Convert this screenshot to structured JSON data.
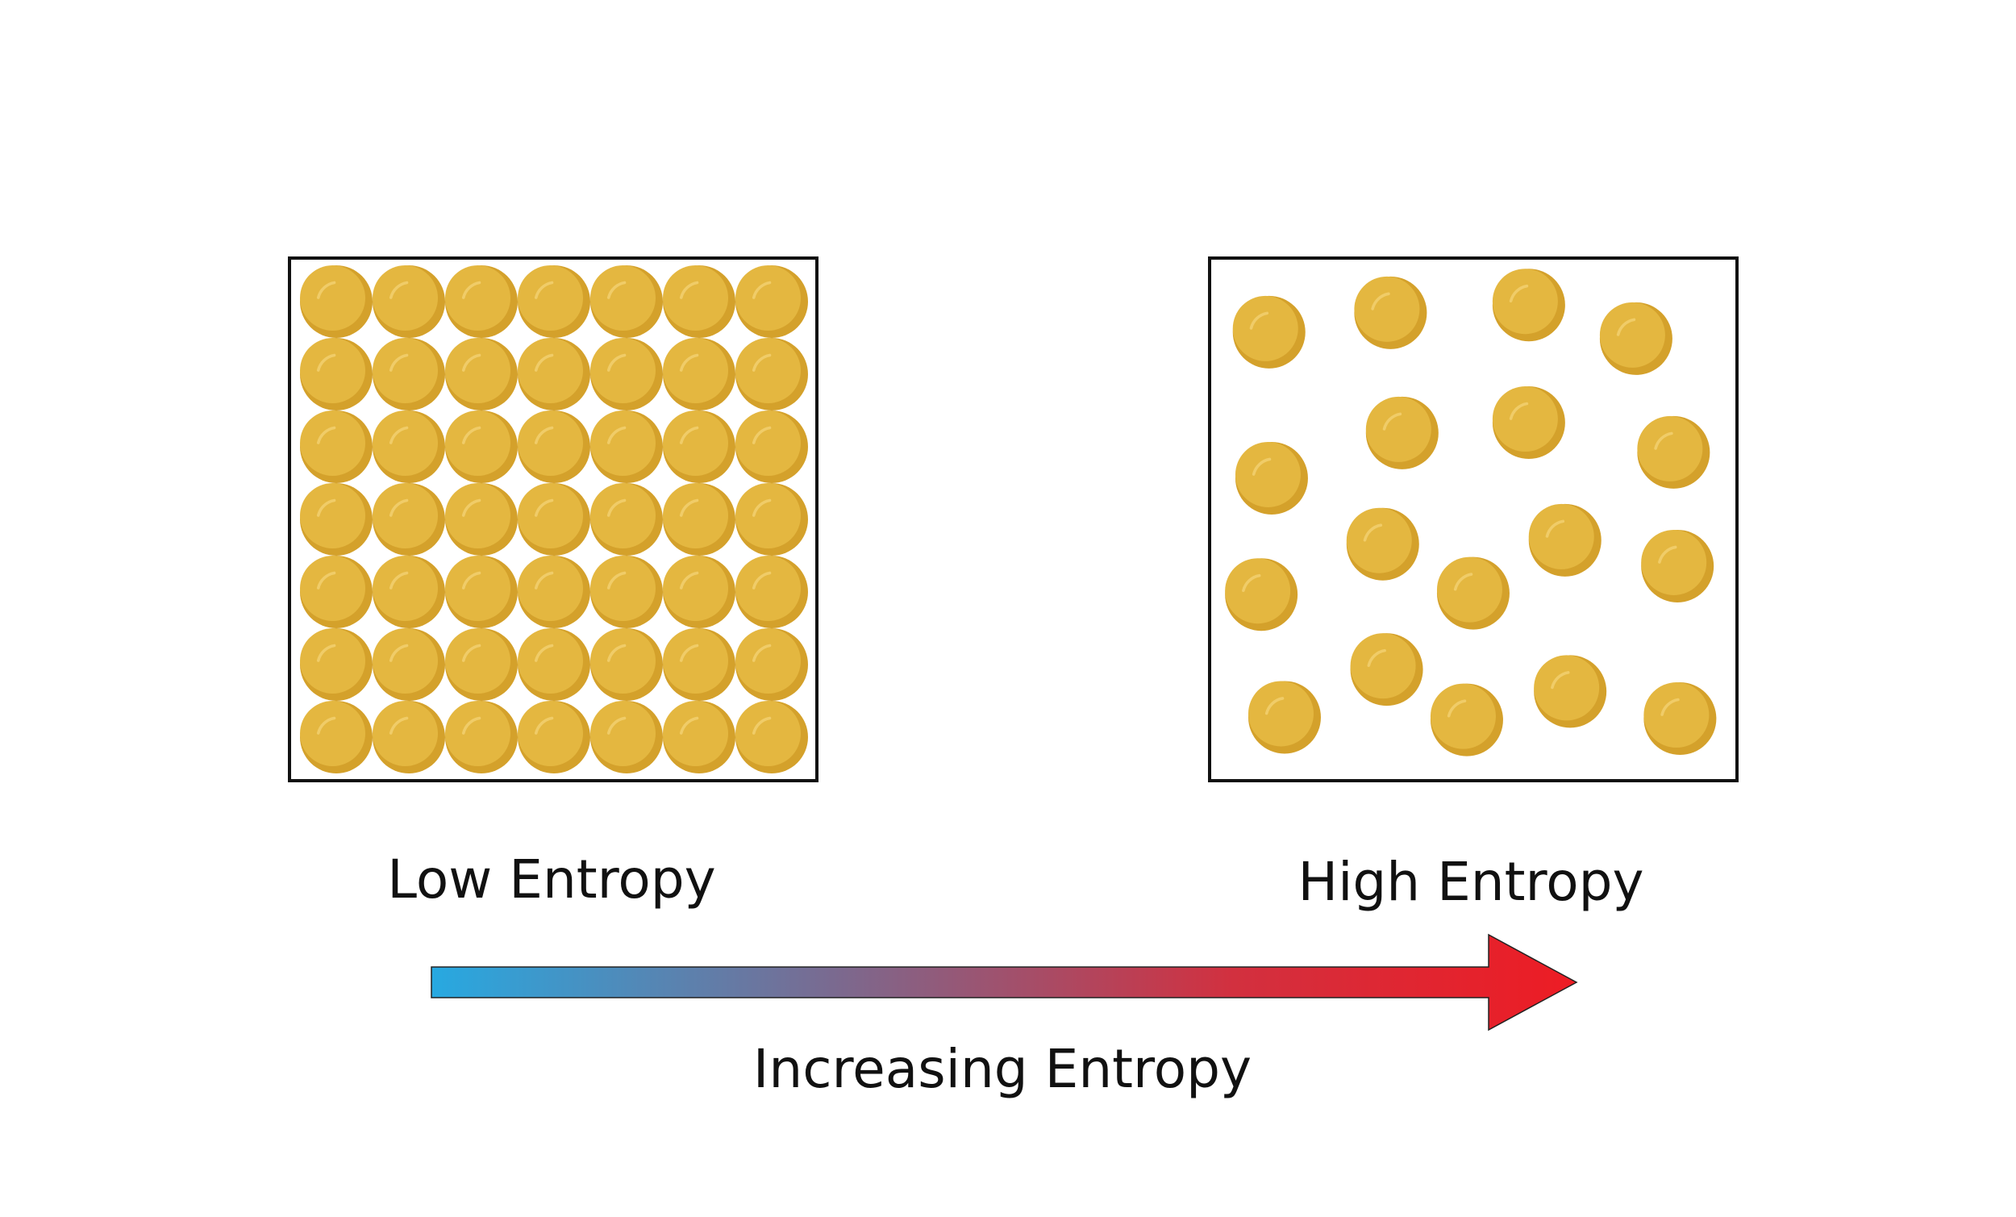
{
  "labels": {
    "low": "Low Entropy",
    "high": "High Entropy",
    "axis": "Increasing Entropy"
  }
}
